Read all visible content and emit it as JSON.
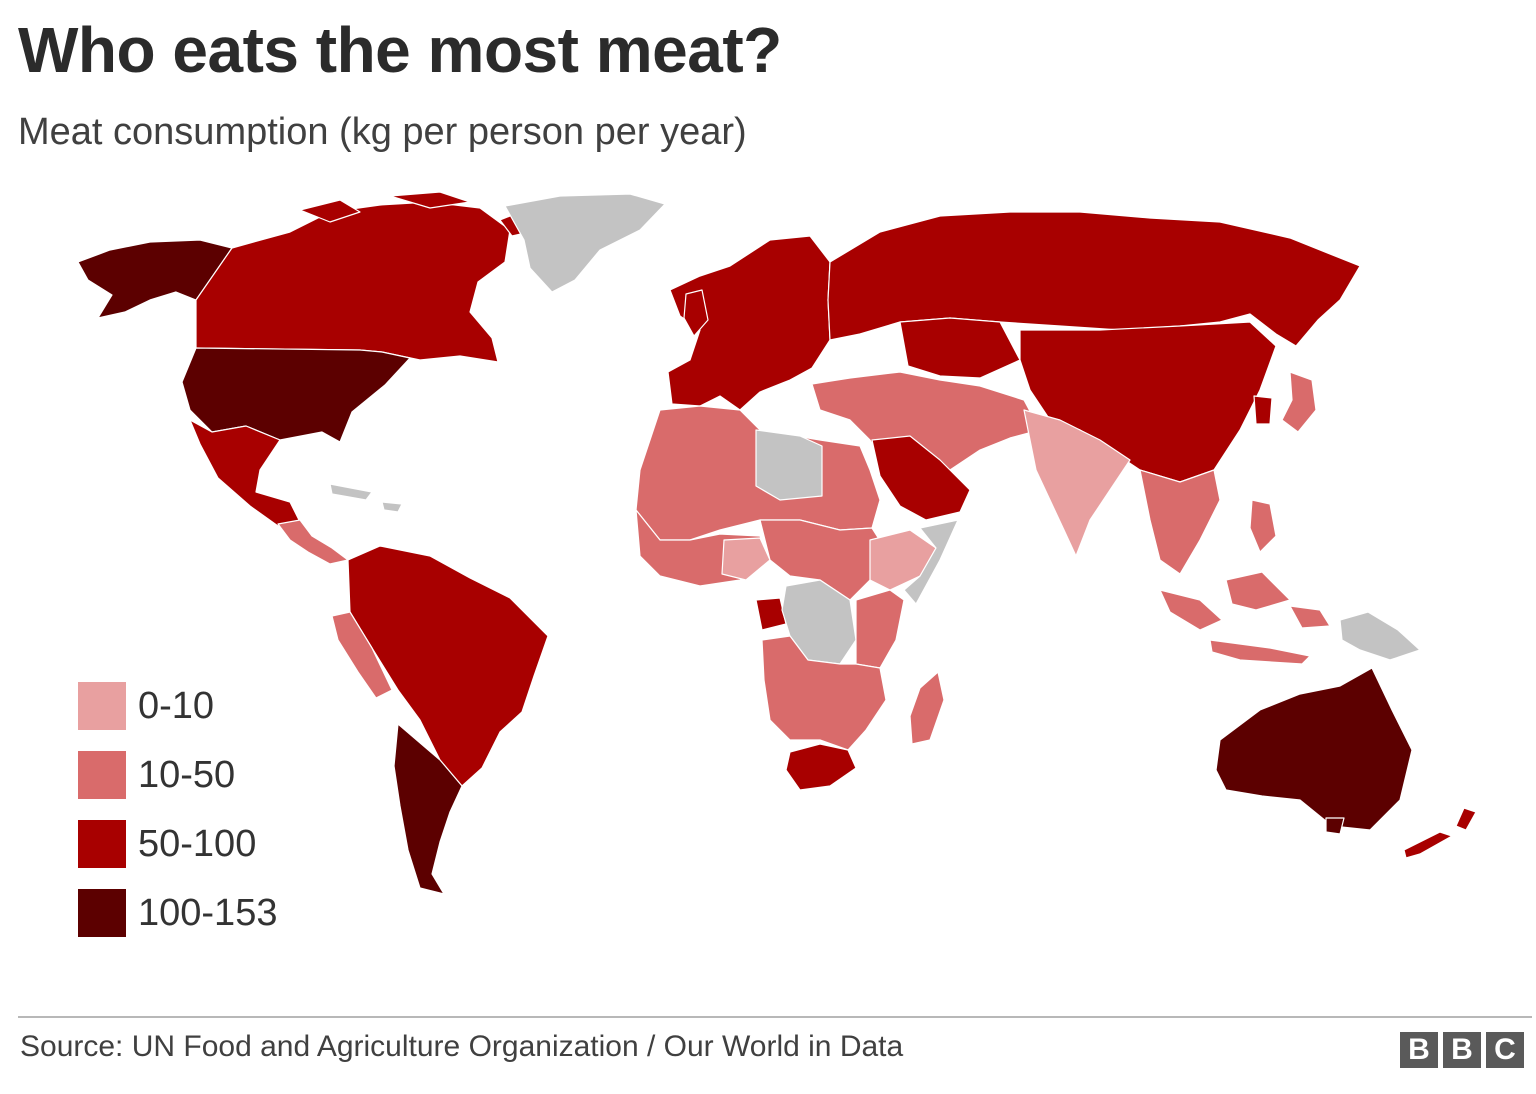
{
  "header": {
    "title": "Who eats the most meat?",
    "subtitle": "Meat consumption (kg per person per year)"
  },
  "legend": {
    "items": [
      {
        "label": "0-10",
        "color": "#e8a0a0"
      },
      {
        "label": "10-50",
        "color": "#d96b6b"
      },
      {
        "label": "50-100",
        "color": "#a80000"
      },
      {
        "label": "100-153",
        "color": "#5c0000"
      }
    ]
  },
  "colors": {
    "no_data": "#c3c3c3",
    "background": "#ffffff",
    "rule": "#b8b8b8"
  },
  "map": {
    "regions": [
      {
        "name": "Alaska",
        "class": "100-153"
      },
      {
        "name": "Canada",
        "class": "50-100"
      },
      {
        "name": "Greenland",
        "class": "no-data"
      },
      {
        "name": "United States",
        "class": "100-153"
      },
      {
        "name": "Mexico",
        "class": "50-100"
      },
      {
        "name": "Central America",
        "class": "10-50"
      },
      {
        "name": "South America north",
        "class": "50-100"
      },
      {
        "name": "Peru",
        "class": "10-50"
      },
      {
        "name": "Argentina",
        "class": "100-153"
      },
      {
        "name": "Europe",
        "class": "50-100"
      },
      {
        "name": "Russia",
        "class": "50-100"
      },
      {
        "name": "China",
        "class": "50-100"
      },
      {
        "name": "North Africa",
        "class": "10-50"
      },
      {
        "name": "Libya",
        "class": "no-data"
      },
      {
        "name": "West Africa",
        "class": "10-50"
      },
      {
        "name": "Central Africa",
        "class": "10-50"
      },
      {
        "name": "DR Congo",
        "class": "no-data"
      },
      {
        "name": "Ethiopia",
        "class": "0-10"
      },
      {
        "name": "Somalia",
        "class": "no-data"
      },
      {
        "name": "Southern Africa",
        "class": "10-50"
      },
      {
        "name": "South Africa",
        "class": "50-100"
      },
      {
        "name": "Madagascar",
        "class": "10-50"
      },
      {
        "name": "Middle East",
        "class": "10-50"
      },
      {
        "name": "Saudi Arabia",
        "class": "50-100"
      },
      {
        "name": "India",
        "class": "0-10"
      },
      {
        "name": "Southeast Asia",
        "class": "10-50"
      },
      {
        "name": "Japan",
        "class": "10-50"
      },
      {
        "name": "Indonesia",
        "class": "10-50"
      },
      {
        "name": "Papua New Guinea",
        "class": "no-data"
      },
      {
        "name": "Australia",
        "class": "100-153"
      },
      {
        "name": "New Zealand",
        "class": "50-100"
      }
    ]
  },
  "footer": {
    "source": "Source: UN Food and Agriculture Organization / Our World in Data",
    "logo": [
      "B",
      "B",
      "C"
    ]
  }
}
